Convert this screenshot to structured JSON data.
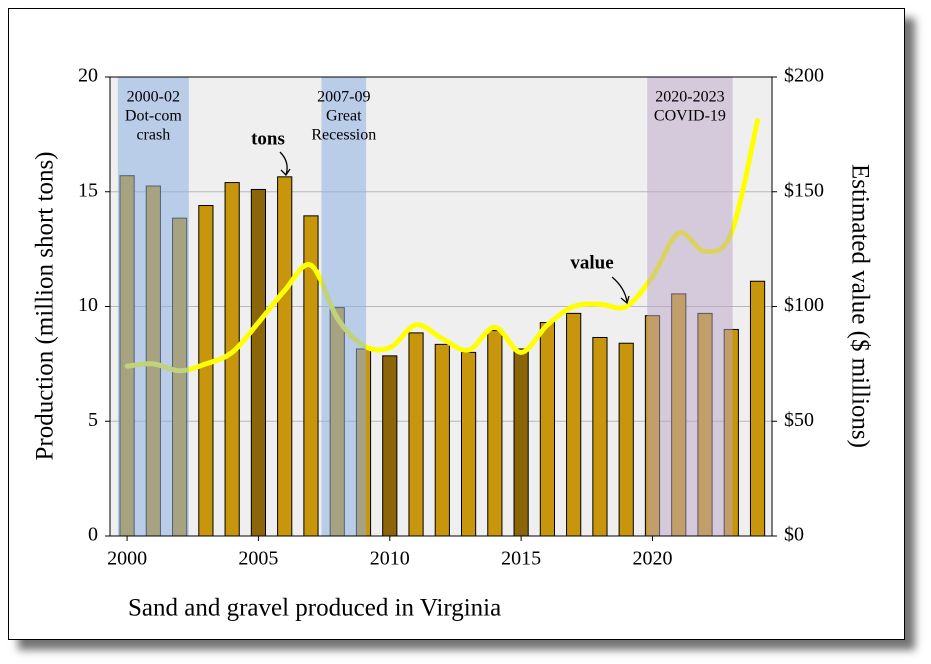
{
  "chart_data": {
    "type": "bar",
    "x_title": "Sand and gravel produced in Virginia",
    "y_title": "Production (million short tons)",
    "y2_title": "Estimated value ($ millions)",
    "x": [
      2000,
      2001,
      2002,
      2003,
      2004,
      2005,
      2006,
      2007,
      2008,
      2009,
      2010,
      2011,
      2012,
      2013,
      2014,
      2015,
      2016,
      2017,
      2018,
      2019,
      2020,
      2021,
      2022,
      2023,
      2024
    ],
    "xlim": [
      1999.35,
      2024.55
    ],
    "xticks": [
      2000,
      2005,
      2010,
      2015,
      2020
    ],
    "ylim": [
      0,
      20
    ],
    "yticks": [
      0,
      5,
      10,
      15,
      20
    ],
    "y2lim": [
      0,
      200
    ],
    "y2ticks": [
      {
        "value": 0,
        "label": "$0"
      },
      {
        "value": 50,
        "label": "$50"
      },
      {
        "value": 100,
        "label": "$100"
      },
      {
        "value": 150,
        "label": "$150"
      },
      {
        "value": 200,
        "label": "$200"
      }
    ],
    "grid": true,
    "series": [
      {
        "name": "tons",
        "type": "bar",
        "axis": "y",
        "colors": [
          "#c8960c",
          "#c8960c",
          "#c8960c",
          "#c8960c",
          "#c8960c",
          "#8b6508",
          "#c8960c",
          "#c8960c",
          "#c8960c",
          "#c8960c",
          "#8b6508",
          "#c8960c",
          "#c8960c",
          "#c8960c",
          "#c8960c",
          "#8b6508",
          "#c8960c",
          "#c8960c",
          "#c8960c",
          "#c8960c",
          "#c8960c",
          "#c8960c",
          "#c8960c",
          "#c8960c",
          "#c8960c"
        ],
        "values": [
          15.7,
          15.25,
          13.85,
          14.4,
          15.4,
          15.1,
          15.65,
          13.95,
          9.95,
          8.15,
          7.85,
          8.85,
          8.35,
          8.0,
          8.95,
          8.15,
          9.3,
          9.7,
          8.65,
          8.4,
          9.6,
          10.55,
          9.7,
          9.0,
          11.1
        ]
      },
      {
        "name": "value",
        "type": "line",
        "axis": "y2",
        "color": "#ffff00",
        "values": [
          74,
          75,
          72,
          75,
          80,
          93,
          107,
          118,
          95,
          83,
          82,
          92,
          86,
          81,
          91,
          80,
          92,
          100,
          101,
          100,
          113,
          132,
          124,
          132,
          181
        ]
      }
    ],
    "shaded_periods": [
      {
        "lines": [
          "2000-02",
          "Dot-com",
          "crash"
        ],
        "start": 1999.65,
        "end": 2002.35,
        "color": "rgba(140,175,225,0.55)"
      },
      {
        "lines": [
          "2007-09",
          "Great",
          "Recession"
        ],
        "start": 2007.4,
        "end": 2009.1,
        "color": "rgba(140,175,225,0.55)"
      },
      {
        "lines": [
          "2020-2023",
          "COVID-19"
        ],
        "start": 2019.8,
        "end": 2023.05,
        "color": "rgba(185,165,200,0.5)"
      }
    ]
  }
}
